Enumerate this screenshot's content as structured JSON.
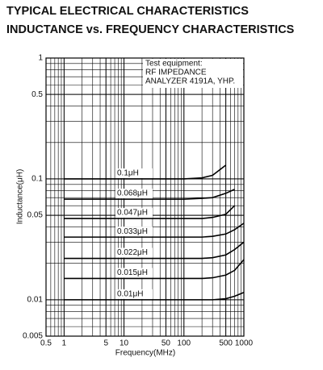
{
  "header": {
    "line1": "TYPICAL ELECTRICAL CHARACTERISTICS",
    "line2": "INDUCTANCE vs. FREQUENCY CHARACTERISTICS"
  },
  "chart_data": {
    "type": "line",
    "xscale": "log",
    "yscale": "log",
    "minor_grid": true,
    "color": "#000000",
    "x_label": "Frequency(MHz)",
    "y_label": "Inductance(μH)",
    "annotation": [
      "Test equipment:",
      "RF IMPEDANCE",
      "ANALYZER 4191A, YHP."
    ],
    "xlim": [
      0.5,
      1000
    ],
    "xticks": [
      0.5,
      1,
      5,
      10,
      50,
      100,
      500,
      1000
    ],
    "ylim": [
      0.005,
      1
    ],
    "yticks": [
      1,
      0.5,
      0.1,
      0.05,
      0.01,
      0.005
    ],
    "x": [
      1,
      10,
      100,
      200,
      300,
      500,
      700,
      1000
    ],
    "series": [
      {
        "name": "0.1μH",
        "values": [
          0.1,
          0.1,
          0.1,
          0.102,
          0.107,
          0.13,
          null,
          null
        ]
      },
      {
        "name": "0.068μH",
        "values": [
          0.068,
          0.068,
          0.068,
          0.069,
          0.07,
          0.076,
          0.082,
          null
        ]
      },
      {
        "name": "0.047μH",
        "values": [
          0.047,
          0.047,
          0.047,
          0.047,
          0.048,
          0.051,
          0.06,
          null
        ]
      },
      {
        "name": "0.033μH",
        "values": [
          0.033,
          0.033,
          0.033,
          0.033,
          0.0335,
          0.035,
          0.038,
          0.043
        ]
      },
      {
        "name": "0.022μH",
        "values": [
          0.022,
          0.022,
          0.022,
          0.022,
          0.0223,
          0.0235,
          0.026,
          0.03
        ]
      },
      {
        "name": "0.015μH",
        "values": [
          0.015,
          0.015,
          0.015,
          0.015,
          0.0152,
          0.016,
          0.0175,
          0.0215
        ]
      },
      {
        "name": "0.01μH",
        "values": [
          0.01,
          0.01,
          0.01,
          0.01,
          0.01,
          0.0102,
          0.0107,
          0.0115
        ]
      }
    ]
  }
}
